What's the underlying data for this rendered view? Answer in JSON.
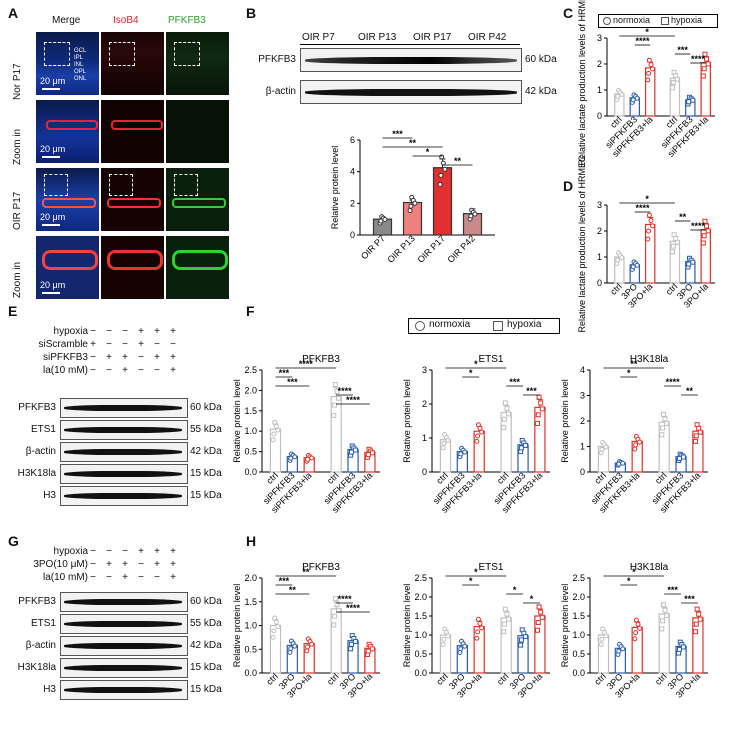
{
  "panels": {
    "A": "A",
    "B": "B",
    "C": "C",
    "D": "D",
    "E": "E",
    "F": "F",
    "G": "G",
    "H": "H"
  },
  "panelA": {
    "col_titles": [
      "Merge",
      "IsoB4",
      "PFKFB3"
    ],
    "col_colors": [
      "#000000",
      "#d62728",
      "#2ca02c"
    ],
    "row_labels": [
      "Nor P17",
      "Zoom in",
      "OIR P17",
      "Zoom in"
    ],
    "layers": [
      "GCL",
      "IPL",
      "INL",
      "OPL",
      "ONL"
    ],
    "scale": "20 μm"
  },
  "panelB": {
    "groups": [
      "OIR P7",
      "OIR P13",
      "OIR P17",
      "OIR P42"
    ],
    "rows": [
      {
        "label": "PFKFB3",
        "kda": "60 kDa"
      },
      {
        "label": "β-actin",
        "kda": "42 kDa"
      }
    ]
  },
  "panelE": {
    "conditions": [
      {
        "label": "hypoxia",
        "signs": [
          "−",
          "−",
          "−",
          "+",
          "+",
          "+"
        ]
      },
      {
        "label": "siScramble",
        "signs": [
          "+",
          "−",
          "−",
          "+",
          "−",
          "−"
        ]
      },
      {
        "label": "siPFKFB3",
        "signs": [
          "−",
          "+",
          "+",
          "−",
          "+",
          "+"
        ]
      },
      {
        "label": "la(10 mM)",
        "signs": [
          "−",
          "−",
          "+",
          "−",
          "−",
          "+"
        ]
      }
    ],
    "blots": [
      {
        "label": "PFKFB3",
        "kda": "60 kDa"
      },
      {
        "label": "ETS1",
        "kda": "55 kDa"
      },
      {
        "label": "β-actin",
        "kda": "42 kDa"
      },
      {
        "label": "H3K18la",
        "kda": "15 kDa"
      },
      {
        "label": "H3",
        "kda": "15 kDa"
      }
    ]
  },
  "panelG": {
    "conditions": [
      {
        "label": "hypoxia",
        "signs": [
          "−",
          "−",
          "−",
          "+",
          "+",
          "+"
        ]
      },
      {
        "label": "3PO(10 μM)",
        "signs": [
          "−",
          "+",
          "+",
          "−",
          "+",
          "+"
        ]
      },
      {
        "label": "la(10 mM)",
        "signs": [
          "−",
          "−",
          "+",
          "−",
          "−",
          "+"
        ]
      }
    ],
    "blots": [
      {
        "label": "PFKFB3",
        "kda": "60 kDa"
      },
      {
        "label": "ETS1",
        "kda": "55 kDa"
      },
      {
        "label": "β-actin",
        "kda": "42 kDa"
      },
      {
        "label": "H3K18la",
        "kda": "15 kDa"
      },
      {
        "label": "H3",
        "kda": "15 kDa"
      }
    ]
  },
  "legend": {
    "normoxia": "normoxia",
    "hypoxia": "hypoxia"
  },
  "colors": {
    "gray": "#8a8a8a",
    "pink": "#f08080",
    "red": "#e03030",
    "rose": "#c98a8a",
    "normoxia": "#bfbfbf",
    "blue": "#2a5caa",
    "redopen": "#d9342b"
  },
  "chart_data": [
    {
      "id": "B",
      "type": "bar",
      "ylabel": "Relative protein level",
      "categories": [
        "OIR P7",
        "OIR P13",
        "OIR P17",
        "OIR P42"
      ],
      "values": [
        1.0,
        2.05,
        4.25,
        1.35
      ],
      "errors": [
        0.15,
        0.15,
        0.55,
        0.3
      ],
      "ylim": [
        0,
        6
      ],
      "yticks": [
        0,
        2,
        4,
        6
      ],
      "sig": [
        {
          "a": 0,
          "b": 1,
          "text": "***"
        },
        {
          "a": 0,
          "b": 2,
          "text": "**"
        },
        {
          "a": 1,
          "b": 2,
          "text": "*"
        },
        {
          "a": 2,
          "b": 3,
          "text": "**"
        }
      ]
    },
    {
      "id": "C",
      "type": "bar",
      "ylabel": "Relative  lactate production levels of HRMEC",
      "categories": [
        "ctrl",
        "siPFKFB3",
        "siPFKFB3+la",
        "ctrl",
        "siPFKFB3",
        "siPFKFB3+la"
      ],
      "values": [
        0.85,
        0.7,
        1.85,
        1.45,
        0.62,
        2.05
      ],
      "ylim": [
        0,
        3
      ],
      "yticks": [
        0,
        1,
        2,
        3
      ],
      "sig": [
        {
          "a": 0,
          "b": 3,
          "text": "*"
        },
        {
          "a": 1,
          "b": 2,
          "text": "****"
        },
        {
          "a": 3,
          "b": 4,
          "text": "***"
        },
        {
          "a": 4,
          "b": 5,
          "text": "****"
        }
      ]
    },
    {
      "id": "D",
      "type": "bar",
      "ylabel": "Relative  lactate production levels of HRMEC",
      "categories": [
        "ctrl",
        "3PO",
        "3PO+la",
        "ctrl",
        "3PO",
        "3PO+la"
      ],
      "values": [
        1.0,
        0.7,
        2.25,
        1.6,
        0.82,
        2.05
      ],
      "ylim": [
        0,
        3
      ],
      "yticks": [
        0,
        1,
        2,
        3
      ],
      "sig": [
        {
          "a": 0,
          "b": 3,
          "text": "*"
        },
        {
          "a": 1,
          "b": 2,
          "text": "****"
        },
        {
          "a": 3,
          "b": 4,
          "text": "**"
        },
        {
          "a": 4,
          "b": 5,
          "text": "****"
        }
      ]
    },
    {
      "id": "F1",
      "type": "bar",
      "title": "PFKFB3",
      "ylabel": "Relative protein level",
      "categories": [
        "ctrl",
        "siPFKFB3",
        "siPFKFB3+la",
        "ctrl",
        "siPFKFB3",
        "siPFKFB3+la"
      ],
      "values": [
        1.05,
        0.38,
        0.35,
        1.85,
        0.55,
        0.48
      ],
      "ylim": [
        0,
        2.5
      ],
      "yticks": [
        0.0,
        0.5,
        1.0,
        1.5,
        2.0,
        2.5
      ],
      "sig": [
        {
          "a": 0,
          "b": 3,
          "text": "****"
        },
        {
          "a": 0,
          "b": 1,
          "text": "***"
        },
        {
          "a": 0,
          "b": 2,
          "text": "***"
        },
        {
          "a": 3,
          "b": 4,
          "text": "****"
        },
        {
          "a": 3,
          "b": 5,
          "text": "****"
        }
      ]
    },
    {
      "id": "F2",
      "type": "bar",
      "title": "ETS1",
      "ylabel": "Relative protein level",
      "categories": [
        "ctrl",
        "siPFKFB3",
        "siPFKFB3+la",
        "ctrl",
        "siPFKFB3",
        "siPFKFB3+la"
      ],
      "values": [
        0.95,
        0.6,
        1.2,
        1.75,
        0.8,
        1.9
      ],
      "ylim": [
        0,
        3
      ],
      "yticks": [
        0,
        1,
        2,
        3
      ],
      "sig": [
        {
          "a": 0,
          "b": 3,
          "text": "*"
        },
        {
          "a": 1,
          "b": 2,
          "text": "*"
        },
        {
          "a": 3,
          "b": 4,
          "text": "***"
        },
        {
          "a": 4,
          "b": 5,
          "text": "***"
        }
      ]
    },
    {
      "id": "F3",
      "type": "bar",
      "title": "H3K18la",
      "ylabel": "Relative protein level",
      "categories": [
        "ctrl",
        "siPFKFB3",
        "siPFKFB3+la",
        "ctrl",
        "siPFKFB3",
        "siPFKFB3+la"
      ],
      "values": [
        1.0,
        0.35,
        1.2,
        1.95,
        0.6,
        1.6
      ],
      "ylim": [
        0,
        4
      ],
      "yticks": [
        0,
        1,
        2,
        3,
        4
      ],
      "sig": [
        {
          "a": 0,
          "b": 3,
          "text": "**"
        },
        {
          "a": 1,
          "b": 2,
          "text": "*"
        },
        {
          "a": 3,
          "b": 4,
          "text": "****"
        },
        {
          "a": 4,
          "b": 5,
          "text": "**"
        }
      ]
    },
    {
      "id": "H1",
      "type": "bar",
      "title": "PFKFB3",
      "ylabel": "Relative protein level",
      "categories": [
        "ctrl",
        "3PO",
        "3PO+la",
        "ctrl",
        "3PO",
        "3PO+la"
      ],
      "values": [
        1.0,
        0.58,
        0.62,
        1.35,
        0.68,
        0.52
      ],
      "ylim": [
        0,
        2.0
      ],
      "yticks": [
        0.0,
        0.5,
        1.0,
        1.5,
        2.0
      ],
      "sig": [
        {
          "a": 0,
          "b": 3,
          "text": "**"
        },
        {
          "a": 0,
          "b": 1,
          "text": "***"
        },
        {
          "a": 0,
          "b": 2,
          "text": "**"
        },
        {
          "a": 3,
          "b": 4,
          "text": "****"
        },
        {
          "a": 3,
          "b": 5,
          "text": "****"
        }
      ]
    },
    {
      "id": "H2",
      "type": "bar",
      "title": "ETS1",
      "ylabel": "Relative protein level",
      "categories": [
        "ctrl",
        "3PO",
        "3PO+la",
        "ctrl",
        "3PO",
        "3PO+la"
      ],
      "values": [
        1.0,
        0.72,
        1.22,
        1.45,
        0.98,
        1.5
      ],
      "ylim": [
        0,
        2.5
      ],
      "yticks": [
        0.0,
        0.5,
        1.0,
        1.5,
        2.0,
        2.5
      ],
      "sig": [
        {
          "a": 0,
          "b": 3,
          "text": "*"
        },
        {
          "a": 1,
          "b": 2,
          "text": "*"
        },
        {
          "a": 3,
          "b": 4,
          "text": "*"
        },
        {
          "a": 4,
          "b": 5,
          "text": "*"
        }
      ]
    },
    {
      "id": "H3",
      "type": "bar",
      "title": "H3K18la",
      "ylabel": "Relative protein level",
      "categories": [
        "ctrl",
        "3PO",
        "3PO+la",
        "ctrl",
        "3PO",
        "3PO+la"
      ],
      "values": [
        1.0,
        0.65,
        1.2,
        1.55,
        0.7,
        1.45
      ],
      "ylim": [
        0,
        2.5
      ],
      "yticks": [
        0.0,
        0.5,
        1.0,
        1.5,
        2.0,
        2.5
      ],
      "sig": [
        {
          "a": 0,
          "b": 3,
          "text": "*"
        },
        {
          "a": 1,
          "b": 2,
          "text": "*"
        },
        {
          "a": 3,
          "b": 4,
          "text": "***"
        },
        {
          "a": 4,
          "b": 5,
          "text": "***"
        }
      ]
    }
  ]
}
